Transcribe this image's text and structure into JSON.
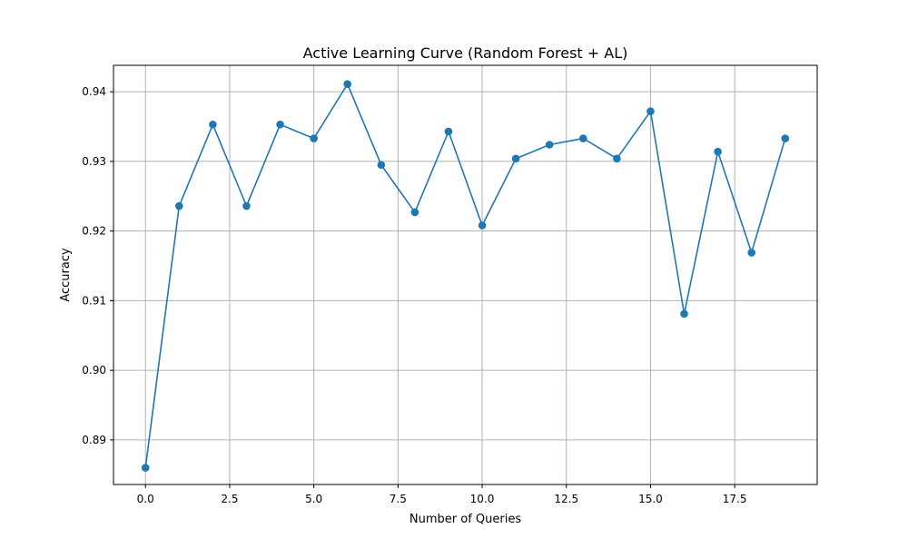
{
  "chart_data": {
    "type": "line",
    "title": "Active Learning Curve (Random Forest + AL)",
    "xlabel": "Number of Queries",
    "ylabel": "Accuracy",
    "xlim": [
      -0.95,
      19.95
    ],
    "ylim": [
      0.8836,
      0.9438
    ],
    "xticks": [
      0.0,
      2.5,
      5.0,
      7.5,
      10.0,
      12.5,
      15.0,
      17.5
    ],
    "xtick_labels": [
      "0.0",
      "2.5",
      "5.0",
      "7.5",
      "10.0",
      "12.5",
      "15.0",
      "17.5"
    ],
    "yticks": [
      0.89,
      0.9,
      0.91,
      0.92,
      0.93,
      0.94
    ],
    "ytick_labels": [
      "0.89",
      "0.90",
      "0.91",
      "0.92",
      "0.93",
      "0.94"
    ],
    "grid": true,
    "marker": "circle",
    "series": [
      {
        "color": "#1f77b4",
        "x": [
          0,
          1,
          2,
          3,
          4,
          5,
          6,
          7,
          8,
          9,
          10,
          11,
          12,
          13,
          14,
          15,
          16,
          17,
          18,
          19
        ],
        "values": [
          0.886,
          0.9236,
          0.9353,
          0.9236,
          0.9353,
          0.9333,
          0.9411,
          0.9295,
          0.9227,
          0.9343,
          0.9208,
          0.9304,
          0.9324,
          0.9333,
          0.9304,
          0.9372,
          0.9081,
          0.9314,
          0.9169,
          0.9333
        ]
      }
    ]
  }
}
